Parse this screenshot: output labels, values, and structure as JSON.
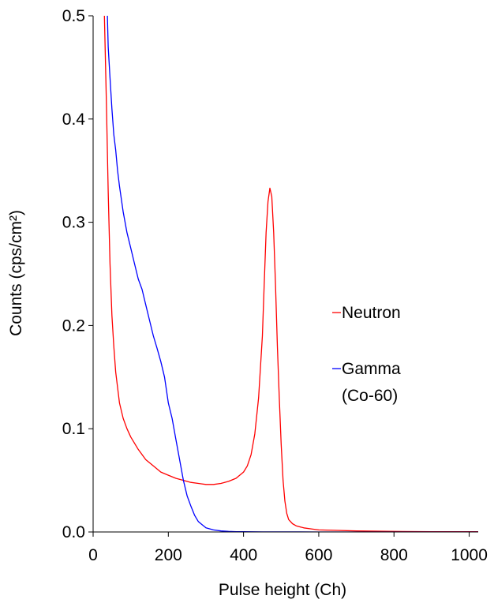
{
  "chart_data": {
    "type": "line",
    "title": "",
    "xlabel": "Pulse height (Ch)",
    "ylabel": "Counts (cps/cm²)",
    "xlim": [
      0,
      1024
    ],
    "ylim": [
      0,
      0.5
    ],
    "xticks": [
      0,
      200,
      400,
      600,
      800,
      1000
    ],
    "yticks": [
      0.0,
      0.1,
      0.2,
      0.3,
      0.4,
      0.5
    ],
    "xtick_labels": [
      "0",
      "200",
      "400",
      "600",
      "800",
      "1000"
    ],
    "ytick_labels": [
      "0.0",
      "0.1",
      "0.2",
      "0.3",
      "0.4",
      "0.5"
    ],
    "grid": false,
    "legend_position": "right",
    "series": [
      {
        "name": "Neutron",
        "legend_lines": [
          "Neutron"
        ],
        "color": "#ff0000",
        "x": [
          30,
          35,
          40,
          45,
          50,
          55,
          60,
          65,
          70,
          80,
          90,
          100,
          120,
          140,
          160,
          180,
          200,
          220,
          240,
          260,
          280,
          300,
          320,
          340,
          360,
          380,
          400,
          410,
          420,
          430,
          440,
          450,
          455,
          460,
          465,
          470,
          475,
          480,
          485,
          490,
          495,
          500,
          505,
          510,
          515,
          520,
          530,
          540,
          560,
          580,
          600,
          650,
          700,
          800,
          900,
          1000,
          1024
        ],
        "y": [
          0.5,
          0.42,
          0.33,
          0.26,
          0.21,
          0.18,
          0.155,
          0.14,
          0.125,
          0.11,
          0.1,
          0.092,
          0.08,
          0.07,
          0.064,
          0.058,
          0.055,
          0.052,
          0.05,
          0.048,
          0.047,
          0.046,
          0.046,
          0.047,
          0.049,
          0.052,
          0.058,
          0.064,
          0.075,
          0.095,
          0.13,
          0.19,
          0.24,
          0.29,
          0.32,
          0.333,
          0.325,
          0.29,
          0.24,
          0.18,
          0.13,
          0.085,
          0.05,
          0.03,
          0.018,
          0.012,
          0.008,
          0.006,
          0.004,
          0.003,
          0.002,
          0.0015,
          0.001,
          0.0005,
          0.0003,
          0.0002,
          0.0002
        ]
      },
      {
        "name": "Gamma (Co-60)",
        "legend_lines": [
          "Gamma",
          "(Co-60)"
        ],
        "color": "#0000ff",
        "x": [
          38,
          40,
          45,
          50,
          55,
          60,
          65,
          70,
          80,
          90,
          100,
          110,
          120,
          130,
          140,
          150,
          160,
          170,
          180,
          190,
          200,
          210,
          220,
          230,
          240,
          250,
          260,
          270,
          280,
          300,
          320,
          340,
          360,
          380,
          400,
          450,
          500,
          600,
          700,
          800,
          900,
          1000,
          1024
        ],
        "y": [
          0.5,
          0.47,
          0.44,
          0.41,
          0.385,
          0.37,
          0.35,
          0.335,
          0.31,
          0.29,
          0.275,
          0.26,
          0.245,
          0.235,
          0.22,
          0.205,
          0.19,
          0.178,
          0.165,
          0.15,
          0.125,
          0.11,
          0.09,
          0.07,
          0.05,
          0.035,
          0.025,
          0.016,
          0.01,
          0.004,
          0.002,
          0.001,
          0.0005,
          0.0003,
          0.0002,
          0.0001,
          0.0001,
          0.0,
          0.0,
          0.0,
          0.0,
          0.0,
          0.0
        ]
      }
    ]
  }
}
